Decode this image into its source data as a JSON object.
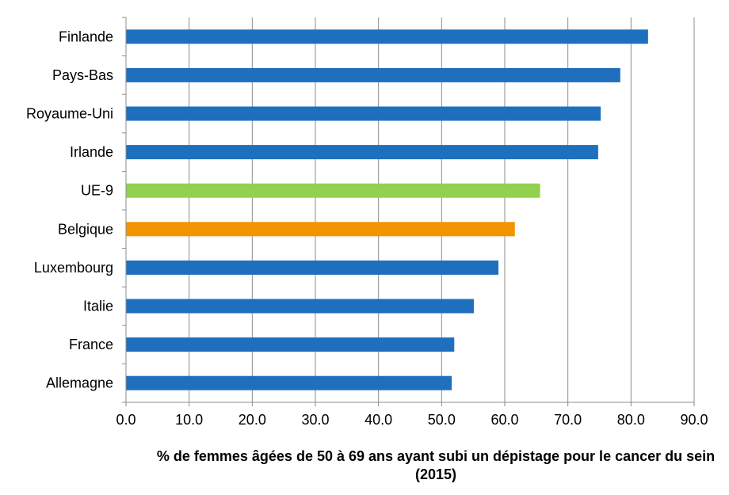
{
  "chart_data": {
    "type": "bar",
    "orientation": "horizontal",
    "categories": [
      "Finlande",
      "Pays-Bas",
      "Royaume-Uni",
      "Irlande",
      "UE-9",
      "Belgique",
      "Luxembourg",
      "Italie",
      "France",
      "Allemagne"
    ],
    "values": [
      82.7,
      78.3,
      75.2,
      74.8,
      65.6,
      61.6,
      59.0,
      55.1,
      52.0,
      51.6
    ],
    "bar_colors": [
      "#1F6FBF",
      "#1F6FBF",
      "#1F6FBF",
      "#1F6FBF",
      "#92D050",
      "#F29400",
      "#1F6FBF",
      "#1F6FBF",
      "#1F6FBF",
      "#1F6FBF"
    ],
    "xlabel": "% de femmes âgées de 50 à 69 ans ayant subi un dépistage pour le cancer du sein (2015)",
    "xlim": [
      0,
      90
    ],
    "x_ticks": [
      "0.0",
      "10.0",
      "20.0",
      "30.0",
      "40.0",
      "50.0",
      "60.0",
      "70.0",
      "80.0",
      "90.0"
    ],
    "grid": "vertical",
    "legend": "none"
  }
}
